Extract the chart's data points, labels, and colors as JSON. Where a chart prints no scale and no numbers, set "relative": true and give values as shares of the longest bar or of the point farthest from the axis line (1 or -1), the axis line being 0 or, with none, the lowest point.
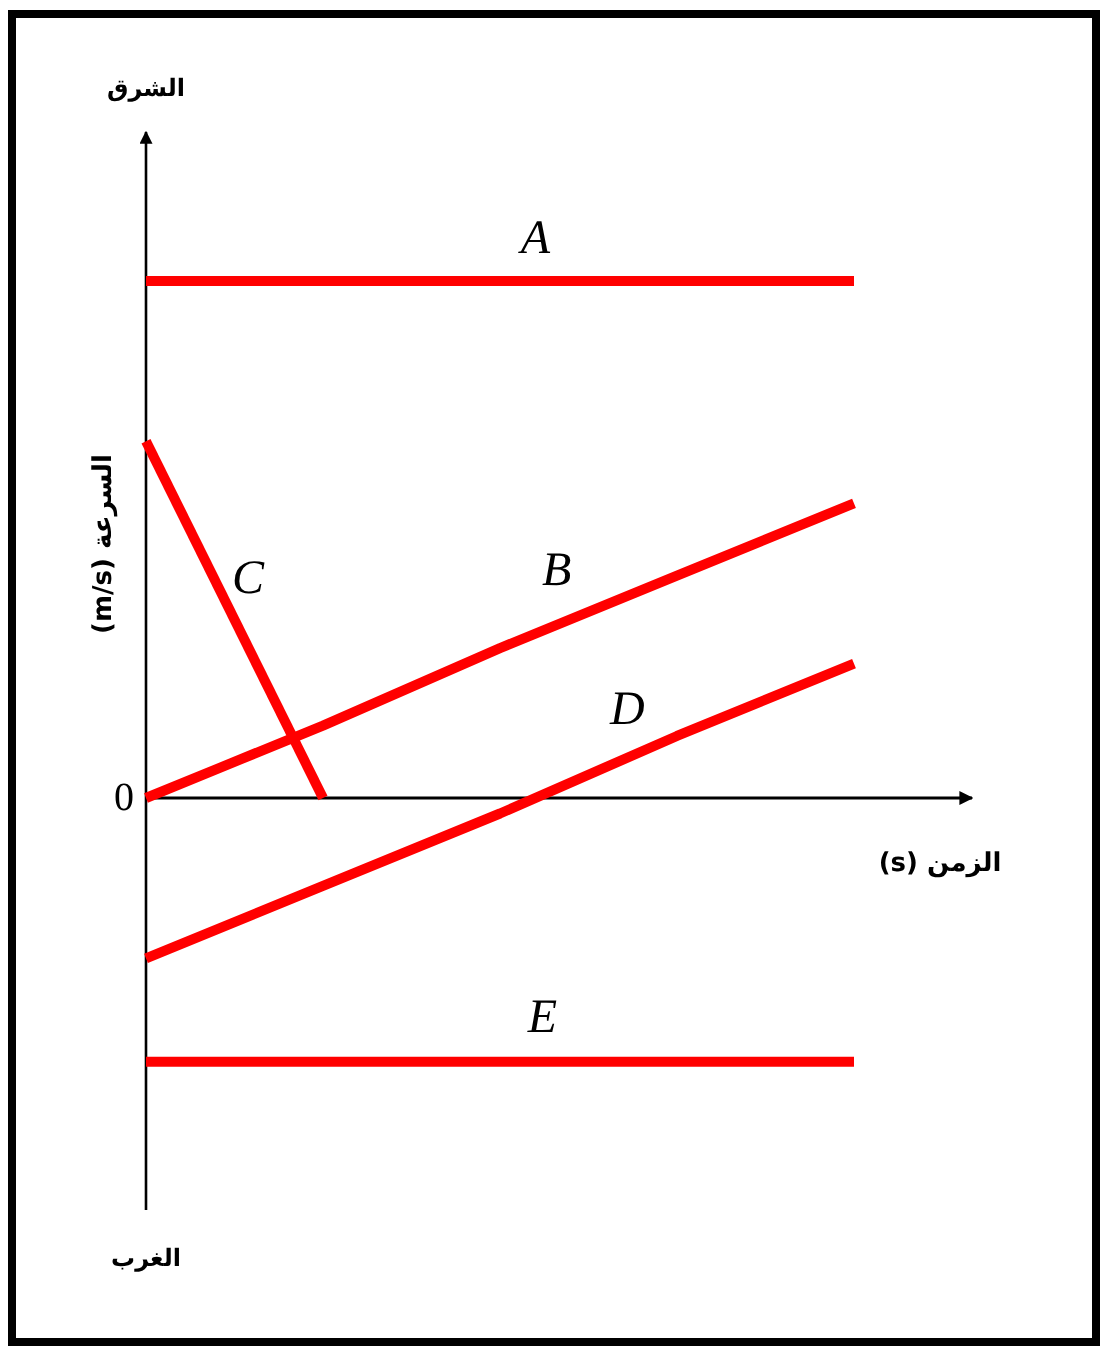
{
  "chart_data": {
    "type": "line",
    "relative": true,
    "categories": [
      null,
      null,
      null,
      null,
      null
    ],
    "xlabel": "الزمن (s)",
    "ylabel": "السرعة (m/s)",
    "annotations": [
      "0",
      "الشرق",
      "الغرب"
    ],
    "series": [
      {
        "name": "A",
        "color": "#ff0000",
        "values": [
          1,
          1,
          1,
          1,
          1
        ]
      },
      {
        "name": "B",
        "color": "#ff0000",
        "values": [
          0,
          0.14,
          0.29,
          0.43,
          0.57
        ]
      },
      {
        "name": "C",
        "color": "#ff0000",
        "values": [
          0.69,
          0,
          null,
          null,
          null
        ]
      },
      {
        "name": "D",
        "color": "#ff0000",
        "values": [
          -0.31,
          -0.17,
          -0.03,
          0.12,
          0.26
        ]
      },
      {
        "name": "E",
        "color": "#ff0000",
        "values": [
          -0.51,
          -0.51,
          -0.51,
          -0.51,
          -0.51
        ]
      }
    ],
    "line_style": "solid"
  }
}
